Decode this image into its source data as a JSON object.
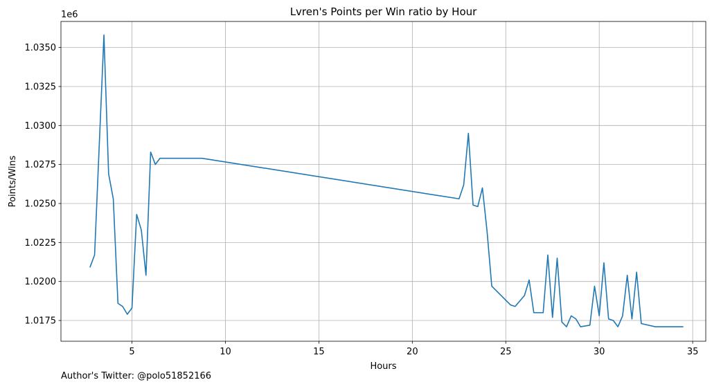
{
  "chart_data": {
    "type": "line",
    "title": "Lvren's Points per Win ratio by Hour",
    "xlabel": "Hours",
    "ylabel": "Points/Wins",
    "y_offset_label": "1e6",
    "xlim": [
      1.2,
      35.7
    ],
    "ylim": [
      1.01617,
      1.03667
    ],
    "xticks": [
      5,
      10,
      15,
      20,
      25,
      30,
      35
    ],
    "xtick_labels": [
      "5",
      "10",
      "15",
      "20",
      "25",
      "30",
      "35"
    ],
    "yticks": [
      1.0175,
      1.02,
      1.0225,
      1.025,
      1.0275,
      1.03,
      1.0325,
      1.035
    ],
    "ytick_labels": [
      "1.0175",
      "1.0200",
      "1.0225",
      "1.0250",
      "1.0275",
      "1.0300",
      "1.0325",
      "1.0350"
    ],
    "grid": true,
    "line_color": "#1f77b4",
    "series": [
      {
        "x": [
          2.75,
          3.0,
          3.5,
          3.75,
          4.0,
          4.25,
          4.5,
          4.75,
          5.0,
          5.25,
          5.5,
          5.75,
          6.0,
          6.25,
          6.5,
          8.75,
          22.5,
          22.75,
          23.0,
          23.25,
          23.5,
          23.75,
          24.0,
          24.25,
          25.25,
          25.5,
          26.0,
          26.25,
          26.5,
          27.0,
          27.25,
          27.5,
          27.75,
          28.0,
          28.25,
          28.5,
          28.75,
          29.0,
          29.5,
          29.75,
          30.0,
          30.25,
          30.5,
          30.75,
          31.0,
          31.25,
          31.5,
          31.75,
          32.0,
          32.25,
          33.0,
          33.75,
          34.5
        ],
        "y": [
          1.0209,
          1.0217,
          1.0358,
          1.0269,
          1.0253,
          1.0186,
          1.0184,
          1.0179,
          1.0183,
          1.0243,
          1.0233,
          1.0204,
          1.0283,
          1.0275,
          1.0279,
          1.0279,
          1.0253,
          1.0262,
          1.0295,
          1.0249,
          1.0248,
          1.026,
          1.0232,
          1.0197,
          1.0185,
          1.0184,
          1.0191,
          1.0201,
          1.018,
          1.018,
          1.0217,
          1.0177,
          1.0215,
          1.0174,
          1.0171,
          1.0178,
          1.0176,
          1.0171,
          1.0172,
          1.0197,
          1.0178,
          1.0212,
          1.0176,
          1.0175,
          1.0171,
          1.0178,
          1.0204,
          1.0176,
          1.0206,
          1.0173,
          1.0171,
          1.0171,
          1.0171
        ]
      }
    ]
  },
  "footnote": "Author's Twitter: @polo51852166"
}
